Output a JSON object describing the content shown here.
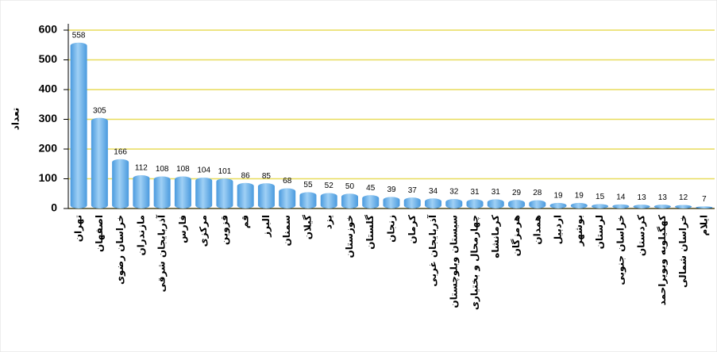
{
  "chart_data": {
    "type": "bar",
    "y_label": "تعداد",
    "categories": [
      "تهران",
      "اصفهان",
      "خراسان رضوی",
      "مازندران",
      "آذربایجان شرقی",
      "فارس",
      "مرکزی",
      "قزوین",
      "قم",
      "البرز",
      "سمنان",
      "گیلان",
      "یزد",
      "خوزستان",
      "گلستان",
      "زنجان",
      "کرمان",
      "آذربایجان غربی",
      "سیستان وبلوچستان",
      "چهارمحال و بختیاری",
      "کرمانشاه",
      "هرمزگان",
      "همدان",
      "اردبیل",
      "بوشهر",
      "لرستان",
      "خراسان جنوبی",
      "کردستان",
      "کهگیلویه وبویراحمد",
      "خراسان شمالی",
      "ایلام"
    ],
    "values": [
      558,
      305,
      166,
      112,
      108,
      108,
      104,
      101,
      86,
      85,
      68,
      55,
      52,
      50,
      45,
      39,
      37,
      34,
      32,
      31,
      31,
      29,
      28,
      19,
      19,
      15,
      14,
      13,
      13,
      12,
      7
    ],
    "color": "#4a9ade",
    "ylim": [
      0,
      600
    ],
    "yticks": [
      0,
      100,
      200,
      300,
      400,
      500,
      600
    ],
    "grid": true,
    "grid_color": "#e8dc5a"
  }
}
